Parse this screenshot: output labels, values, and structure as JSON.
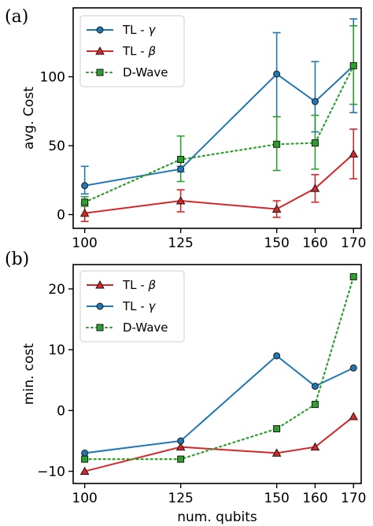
{
  "chart_data": [
    {
      "panel_label": "(a)",
      "type": "line",
      "ylabel": "avg. Cost",
      "xlabel": "",
      "x": [
        100,
        125,
        150,
        160,
        170
      ],
      "xticks": [
        100,
        125,
        150,
        160,
        170
      ],
      "yticks": [
        0,
        50,
        100
      ],
      "xlim": [
        97,
        172
      ],
      "ylim": [
        -10,
        150
      ],
      "legend_position": "upper-left",
      "series": [
        {
          "name": "TL - γ",
          "name_main": "TL - ",
          "name_symbol": "γ",
          "color": "#1f77b4",
          "marker": "circle",
          "linestyle": "solid",
          "values": [
            21,
            33,
            102,
            82,
            108
          ],
          "err_low": [
            15,
            31,
            71,
            60,
            74
          ],
          "err_high": [
            35,
            35,
            132,
            111,
            142
          ]
        },
        {
          "name": "TL - β",
          "name_main": "TL - ",
          "name_symbol": "β",
          "color": "#d62728",
          "marker": "triangle",
          "linestyle": "solid",
          "values": [
            1,
            10,
            4,
            19,
            44
          ],
          "err_low": [
            -5,
            2,
            -2,
            9,
            26
          ],
          "err_high": [
            8,
            18,
            10,
            29,
            62
          ]
        },
        {
          "name": "D-Wave",
          "name_main": "D-Wave",
          "name_symbol": "",
          "color": "#2ca02c",
          "marker": "square",
          "linestyle": "dotted",
          "values": [
            9,
            40,
            51,
            52,
            108
          ],
          "err_low": [
            6,
            24,
            32,
            33,
            80
          ],
          "err_high": [
            13,
            57,
            71,
            72,
            137
          ]
        }
      ]
    },
    {
      "panel_label": "(b)",
      "type": "line",
      "ylabel": "min. cost",
      "xlabel": "num. qubits",
      "x": [
        100,
        125,
        150,
        160,
        170
      ],
      "xticks": [
        100,
        125,
        150,
        160,
        170
      ],
      "yticks": [
        -10,
        0,
        10,
        20
      ],
      "xlim": [
        97,
        172
      ],
      "ylim": [
        -12,
        24
      ],
      "legend_position": "upper-left",
      "series": [
        {
          "name": "TL - β",
          "name_main": "TL - ",
          "name_symbol": "β",
          "color": "#d62728",
          "marker": "triangle",
          "linestyle": "solid",
          "values": [
            -10,
            -6,
            -7,
            -6,
            -1
          ]
        },
        {
          "name": "TL - γ",
          "name_main": "TL - ",
          "name_symbol": "γ",
          "color": "#1f77b4",
          "marker": "circle",
          "linestyle": "solid",
          "values": [
            -7,
            -5,
            9,
            4,
            7
          ]
        },
        {
          "name": "D-Wave",
          "name_main": "D-Wave",
          "name_symbol": "",
          "color": "#2ca02c",
          "marker": "square",
          "linestyle": "dotted",
          "values": [
            -8,
            -8,
            -3,
            1,
            22
          ]
        }
      ]
    }
  ]
}
